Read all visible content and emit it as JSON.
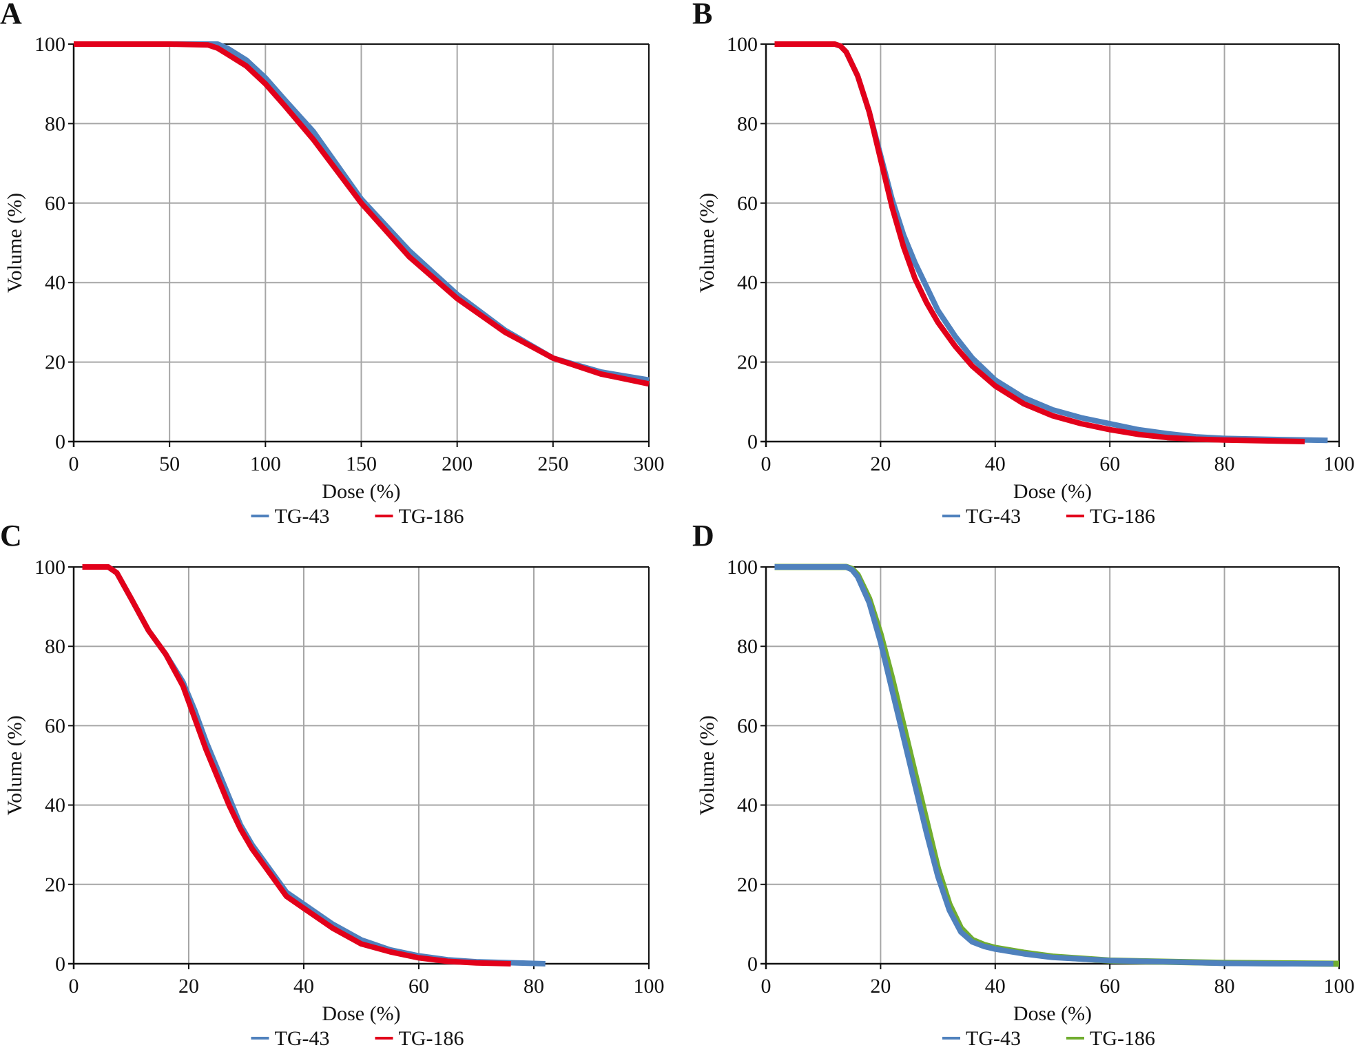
{
  "chart_data": [
    {
      "panel": "A",
      "type": "line",
      "xlabel": "Dose (%)",
      "ylabel": "Volume (%)",
      "xlim": [
        0,
        300
      ],
      "ylim": [
        0,
        100
      ],
      "xticks": [
        "0",
        "50",
        "100",
        "150",
        "200",
        "250",
        "300"
      ],
      "yticks": [
        "0",
        "20",
        "40",
        "60",
        "80",
        "100"
      ],
      "grid": true,
      "legend": "bottom-center",
      "series": [
        {
          "name": "TG-43",
          "color": "#4f81bd",
          "x": [
            0,
            50,
            70,
            75,
            80,
            90,
            100,
            110,
            125,
            150,
            175,
            200,
            225,
            250,
            275,
            300
          ],
          "y": [
            100,
            100,
            100,
            100,
            99,
            96,
            91.5,
            86,
            78,
            61,
            48,
            37,
            28,
            21,
            17.5,
            15.5
          ]
        },
        {
          "name": "TG-186",
          "color": "#e2001a",
          "x": [
            0,
            50,
            70,
            75,
            80,
            90,
            100,
            110,
            125,
            150,
            175,
            200,
            225,
            250,
            275,
            300
          ],
          "y": [
            100,
            100,
            99.8,
            99,
            97.5,
            94.5,
            90,
            84.5,
            76,
            60,
            46.5,
            36,
            27.5,
            21,
            17,
            14.5
          ]
        }
      ]
    },
    {
      "panel": "B",
      "type": "line",
      "xlabel": "Dose (%)",
      "ylabel": "Volume (%)",
      "xlim": [
        0,
        100
      ],
      "ylim": [
        0,
        100
      ],
      "xticks": [
        "0",
        "20",
        "40",
        "60",
        "80",
        "100"
      ],
      "yticks": [
        "0",
        "20",
        "40",
        "60",
        "80",
        "100"
      ],
      "grid": true,
      "legend": "bottom-center",
      "series": [
        {
          "name": "TG-43",
          "color": "#4f81bd",
          "x": [
            1.5,
            12,
            13,
            14,
            16,
            18,
            20,
            22,
            24,
            26,
            28,
            30,
            33,
            36,
            40,
            45,
            50,
            55,
            60,
            65,
            70,
            75,
            80,
            90,
            98
          ],
          "y": [
            100,
            100,
            99.5,
            98,
            92,
            83,
            72,
            61,
            52,
            45,
            39,
            33,
            26.5,
            21,
            15.5,
            11,
            8,
            6,
            4.5,
            3,
            2,
            1.2,
            0.8,
            0.5,
            0.3
          ]
        },
        {
          "name": "TG-186",
          "color": "#e2001a",
          "x": [
            1.5,
            12,
            13,
            14,
            16,
            18,
            20,
            22,
            24,
            26,
            28,
            30,
            33,
            36,
            40,
            45,
            50,
            55,
            60,
            65,
            70,
            75,
            80,
            90,
            94
          ],
          "y": [
            100,
            100,
            99.5,
            98,
            92,
            83,
            71,
            59,
            49,
            41,
            35,
            30,
            24,
            19,
            14,
            9.5,
            6.5,
            4.5,
            3,
            1.8,
            1,
            0.6,
            0.4,
            0.1,
            0
          ]
        }
      ]
    },
    {
      "panel": "C",
      "type": "line",
      "xlabel": "Dose (%)",
      "ylabel": "Volume (%)",
      "xlim": [
        0,
        100
      ],
      "ylim": [
        0,
        100
      ],
      "xticks": [
        "0",
        "20",
        "40",
        "60",
        "80",
        "100"
      ],
      "yticks": [
        "0",
        "20",
        "40",
        "60",
        "80",
        "100"
      ],
      "grid": true,
      "legend": "bottom-center",
      "series": [
        {
          "name": "TG-43",
          "color": "#4f81bd",
          "x": [
            1.5,
            6,
            7.5,
            10,
            13,
            16,
            19,
            21,
            23,
            25,
            27,
            29,
            31,
            34,
            37,
            40,
            45,
            50,
            55,
            60,
            65,
            70,
            75,
            82
          ],
          "y": [
            100,
            100,
            98.5,
            92,
            84,
            78,
            71,
            64,
            56,
            49,
            42,
            35,
            30,
            24,
            18,
            15,
            10,
            6,
            3.5,
            2,
            1,
            0.5,
            0.3,
            0
          ]
        },
        {
          "name": "TG-186",
          "color": "#e2001a",
          "x": [
            1.5,
            6,
            7.5,
            10,
            13,
            16,
            19,
            21,
            23,
            25,
            27,
            29,
            31,
            34,
            37,
            40,
            45,
            50,
            55,
            60,
            65,
            70,
            76
          ],
          "y": [
            100,
            100,
            98.5,
            92,
            84,
            78,
            70,
            62,
            54,
            47,
            40,
            34,
            29,
            23,
            17,
            14,
            9,
            5,
            3,
            1.5,
            0.6,
            0.2,
            0
          ]
        }
      ]
    },
    {
      "panel": "D",
      "type": "line",
      "xlabel": "Dose (%)",
      "ylabel": "Volume (%)",
      "xlim": [
        0,
        100
      ],
      "ylim": [
        0,
        100
      ],
      "xticks": [
        "0",
        "20",
        "40",
        "60",
        "80",
        "100"
      ],
      "yticks": [
        "0",
        "20",
        "40",
        "60",
        "80",
        "100"
      ],
      "grid": true,
      "legend": "bottom-center",
      "series": [
        {
          "name": "TG-186",
          "color": "#70ad2f",
          "x": [
            1.5,
            14,
            15,
            16,
            18,
            20,
            22,
            24,
            26,
            28,
            30,
            32,
            34,
            36,
            38,
            40,
            45,
            50,
            60,
            70,
            80,
            90,
            100
          ],
          "y": [
            100,
            100,
            99.5,
            98,
            92,
            83,
            72,
            60,
            48,
            36,
            24,
            15,
            9,
            6,
            4.8,
            4,
            2.8,
            1.8,
            0.8,
            0.5,
            0.2,
            0.1,
            0
          ]
        },
        {
          "name": "TG-43",
          "color": "#4f81bd",
          "x": [
            1.5,
            14,
            15,
            16,
            18,
            20,
            22,
            24,
            26,
            28,
            30,
            32,
            34,
            36,
            38,
            40,
            45,
            50,
            60,
            70,
            80,
            90,
            99
          ],
          "y": [
            100,
            100,
            99.3,
            97.5,
            91,
            81,
            69,
            57,
            45,
            33,
            22,
            13.5,
            8,
            5.5,
            4.4,
            3.7,
            2.5,
            1.6,
            0.8,
            0.5,
            0.1,
            0,
            0
          ]
        }
      ]
    }
  ]
}
